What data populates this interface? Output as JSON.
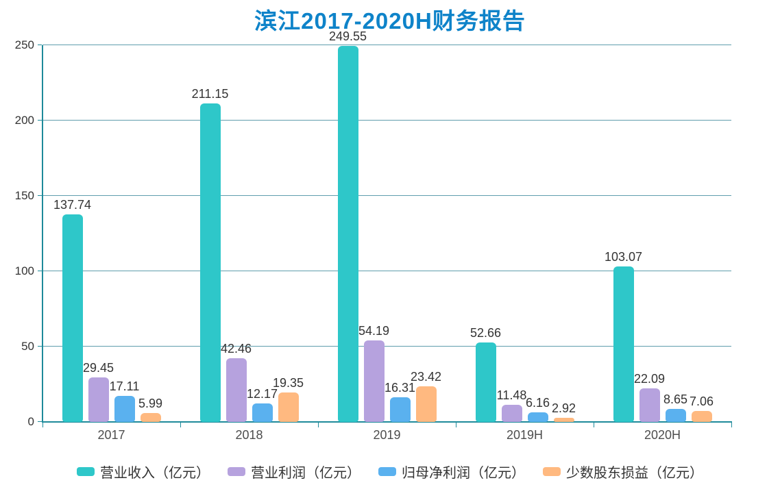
{
  "title": "滨江2017-2020H财务报告",
  "colors": {
    "title": "#0e83c9",
    "axis": "#1e8a9a",
    "gridline": "#5f9dad",
    "label": "#333333",
    "background": "#ffffff"
  },
  "chart_data": {
    "type": "bar",
    "title": "滨江2017-2020H财务报告",
    "categories": [
      "2017",
      "2018",
      "2019",
      "2019H",
      "2020H"
    ],
    "series": [
      {
        "name": "营业收入（亿元）",
        "color": "#2ec7c9",
        "values": [
          137.74,
          211.15,
          249.55,
          52.66,
          103.07
        ]
      },
      {
        "name": "营业利润（亿元）",
        "color": "#b6a2de",
        "values": [
          29.45,
          42.46,
          54.19,
          11.48,
          22.09
        ]
      },
      {
        "name": "归母净利润（亿元）",
        "color": "#5ab1ef",
        "values": [
          17.11,
          12.17,
          16.31,
          6.16,
          8.65
        ]
      },
      {
        "name": "少数股东损益（亿元）",
        "color": "#ffb980",
        "values": [
          5.99,
          19.35,
          23.42,
          2.92,
          7.06
        ]
      }
    ],
    "xlabel": "",
    "ylabel": "",
    "ylim": [
      0,
      250
    ],
    "yticks": [
      0,
      50,
      100,
      150,
      200,
      250
    ],
    "grid": true,
    "value_labels": true,
    "legend_position": "bottom"
  }
}
